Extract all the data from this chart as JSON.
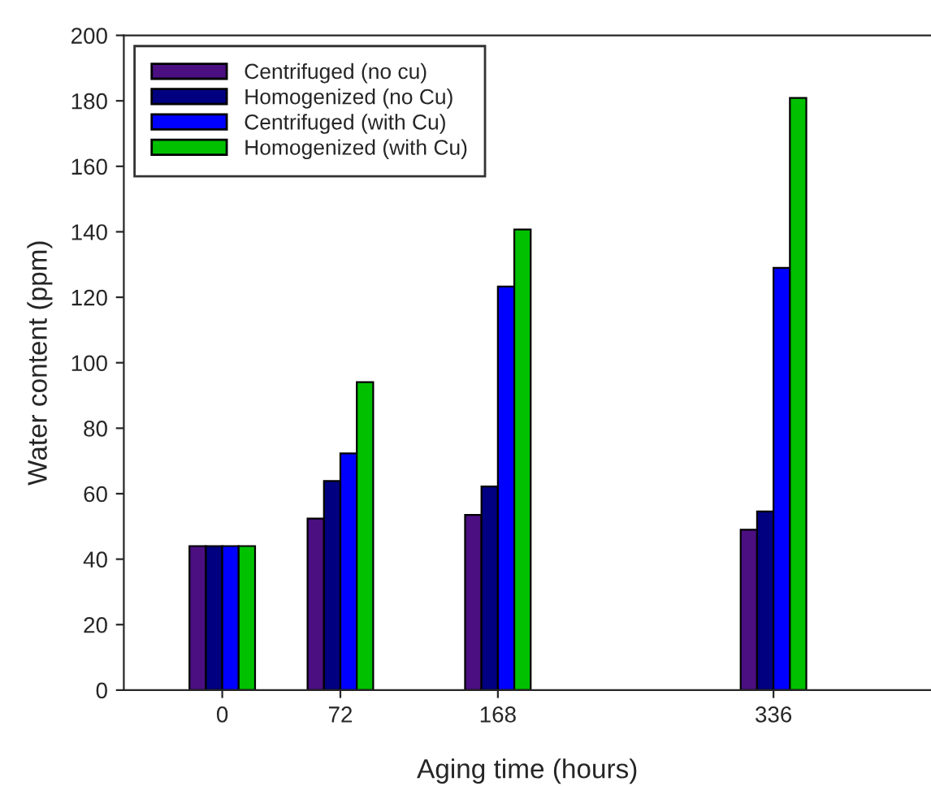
{
  "chart_data": {
    "type": "bar",
    "xlabel": "Aging time (hours)",
    "ylabel": "Water content (ppm)",
    "x": [
      0,
      72,
      168,
      336
    ],
    "series": [
      {
        "name": "Centrifuged (no cu)",
        "color": "#4b0f82",
        "values": [
          44,
          52.4,
          53.5,
          49
        ]
      },
      {
        "name": "Homogenized (no Cu)",
        "color": "#000080",
        "values": [
          44,
          63.9,
          62.2,
          54.6
        ]
      },
      {
        "name": "Centrifuged (with Cu)",
        "color": "#0000ff",
        "values": [
          44,
          72.3,
          123.3,
          129
        ]
      },
      {
        "name": "Homogenized (with Cu)",
        "color": "#00c000",
        "values": [
          44,
          94.1,
          140.7,
          180.9
        ]
      }
    ],
    "xlim": [
      -60,
      432
    ],
    "xticks": [
      0,
      72,
      168,
      336
    ],
    "ylim": [
      0,
      200
    ],
    "yticks": [
      0,
      20,
      40,
      60,
      80,
      100,
      120,
      140,
      160,
      180,
      200
    ],
    "grid": false,
    "legend": "top left"
  }
}
